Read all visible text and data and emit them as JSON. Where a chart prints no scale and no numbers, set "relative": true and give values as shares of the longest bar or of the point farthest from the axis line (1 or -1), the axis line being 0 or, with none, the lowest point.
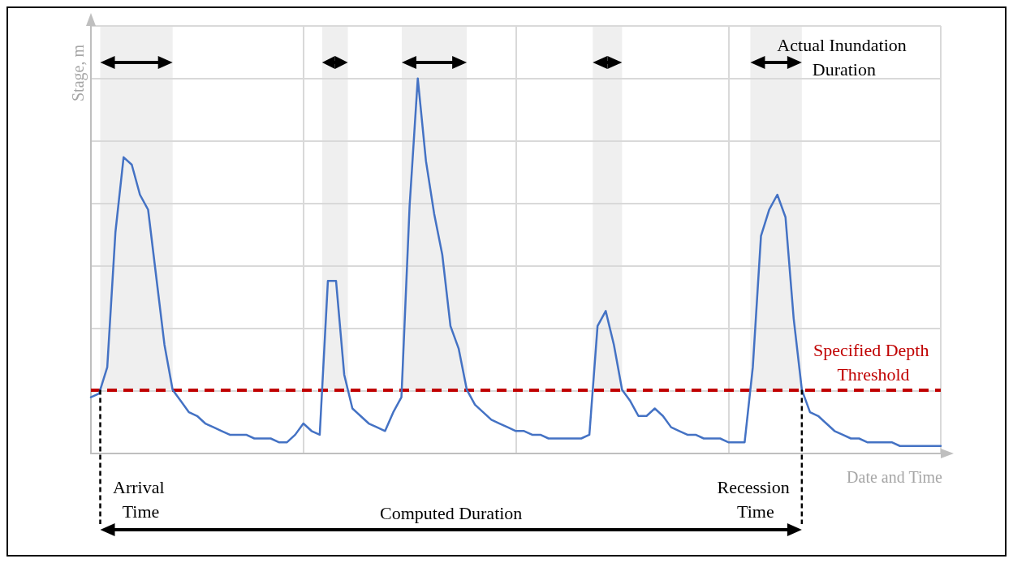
{
  "chart_data": {
    "type": "line",
    "relative": true,
    "xlabel": "Date and Time",
    "ylabel": "Stage, m",
    "categories": [
      null,
      null,
      null,
      null,
      null,
      null,
      null,
      null,
      null,
      null,
      null,
      null,
      null,
      null,
      null,
      null,
      null,
      null,
      null,
      null,
      null,
      null,
      null,
      null,
      null,
      null,
      null,
      null,
      null,
      null,
      null,
      null,
      null,
      null,
      null,
      null,
      null,
      null,
      null,
      null,
      null,
      null,
      null,
      null,
      null,
      null,
      null,
      null,
      null,
      null,
      null,
      null,
      null,
      null,
      null,
      null,
      null,
      null,
      null,
      null,
      null,
      null,
      null,
      null,
      null,
      null,
      null,
      null,
      null,
      null,
      null,
      null,
      null,
      null,
      null,
      null,
      null,
      null,
      null,
      null,
      null,
      null,
      null,
      null,
      null,
      null,
      null,
      null,
      null,
      null,
      null,
      null,
      null,
      null,
      null,
      null,
      null,
      null,
      null,
      null,
      null,
      null,
      null,
      null,
      null
    ],
    "series": [
      {
        "color": "#4472c4",
        "values": [
          0.15,
          0.16,
          0.23,
          0.59,
          0.79,
          0.77,
          0.69,
          0.65,
          0.47,
          0.29,
          0.17,
          0.14,
          0.11,
          0.1,
          0.08,
          0.07,
          0.06,
          0.05,
          0.05,
          0.05,
          0.04,
          0.04,
          0.04,
          0.03,
          0.03,
          0.05,
          0.08,
          0.06,
          0.05,
          0.46,
          0.46,
          0.21,
          0.12,
          0.1,
          0.08,
          0.07,
          0.06,
          0.11,
          0.15,
          0.66,
          1,
          0.78,
          0.64,
          0.53,
          0.34,
          0.28,
          0.17,
          0.13,
          0.11,
          0.09,
          0.08,
          0.07,
          0.06,
          0.06,
          0.05,
          0.05,
          0.04,
          0.04,
          0.04,
          0.04,
          0.04,
          0.05,
          0.34,
          0.38,
          0.29,
          0.17,
          0.14,
          0.1,
          0.1,
          0.12,
          0.1,
          0.07,
          0.06,
          0.05,
          0.05,
          0.04,
          0.04,
          0.04,
          0.03,
          0.03,
          0.03,
          0.23,
          0.58,
          0.65,
          0.69,
          0.63,
          0.36,
          0.17,
          0.11,
          0.1,
          0.08,
          0.06,
          0.05,
          0.04,
          0.04,
          0.03,
          0.03,
          0.03,
          0.03,
          0.02,
          0.02,
          0.02,
          0.02,
          0.02,
          0.02
        ]
      }
    ],
    "grid": true,
    "marker": "none",
    "line_style": "solid",
    "ref_lines": [
      {
        "axis": "y",
        "value": 0.17,
        "label": "Specified Depth Threshold",
        "color": "#c00000",
        "line_style": "dashed"
      }
    ],
    "annotations": [
      "Actual Inundation Duration",
      "Arrival Time",
      "Recession Time",
      "Computed Duration"
    ]
  }
}
